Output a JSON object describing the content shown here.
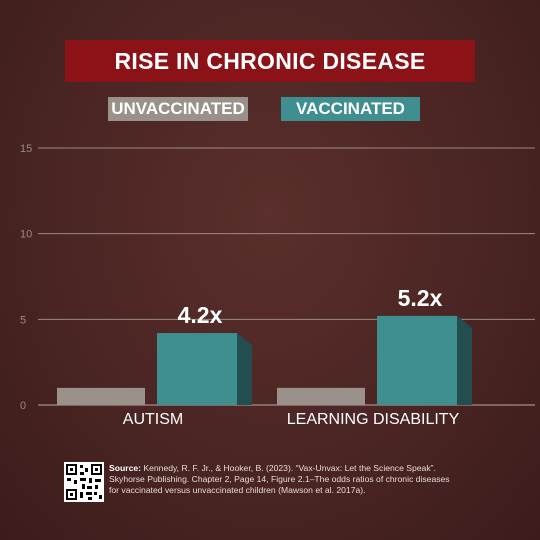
{
  "chart_data": {
    "type": "bar",
    "title": "RISE IN CHRONIC DISEASE",
    "title_color": "#8b1216",
    "categories": [
      "AUTISM",
      "LEARNING DISABILITY"
    ],
    "series": [
      {
        "name": "UNVACCINATED",
        "values": [
          1,
          1
        ],
        "color": "#9a918b"
      },
      {
        "name": "VACCINATED",
        "values": [
          4.2,
          5.2
        ],
        "color": "#3f8e90"
      }
    ],
    "data_labels": [
      "4.2x",
      "5.2x"
    ],
    "ylim": [
      0,
      15
    ],
    "yticks": [
      0,
      5,
      10,
      15
    ],
    "grid": true,
    "legend_position": "top"
  },
  "source": {
    "label": "Source:",
    "text": "Kennedy, R. F. Jr., & Hooker, B. (2023). “Vax-Unvax: Let the Science Speak”. Skyhorse Publishing. Chapter 2, Page 14, Figure 2.1–The odds ratios of chronic diseases for vaccinated versus unvaccinated children (Mawson et al. 2017a)."
  },
  "qr_code": {
    "icon": "qr-code-icon"
  }
}
